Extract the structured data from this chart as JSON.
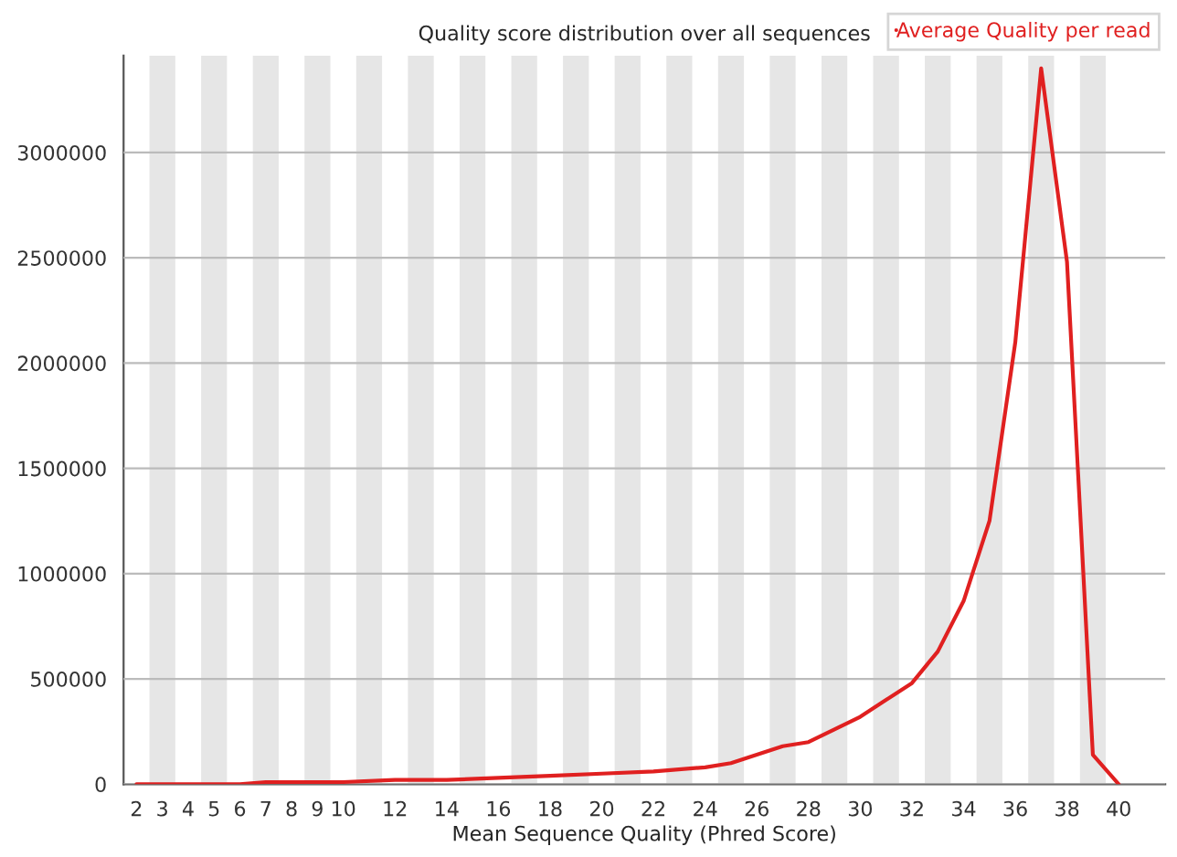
{
  "chart_data": {
    "type": "line",
    "title": "Quality score distribution over all sequences",
    "xlabel": "Mean Sequence Quality (Phred Score)",
    "x": [
      2,
      3,
      4,
      5,
      6,
      7,
      8,
      9,
      10,
      12,
      14,
      16,
      18,
      20,
      22,
      24,
      25,
      26,
      27,
      28,
      29,
      30,
      31,
      32,
      33,
      34,
      35,
      36,
      37,
      38,
      39,
      40
    ],
    "series": [
      {
        "name": "Average Quality per read",
        "color": "#e02020",
        "values": [
          0,
          0,
          0,
          0,
          0,
          10000,
          10000,
          10000,
          10000,
          20000,
          20000,
          30000,
          40000,
          50000,
          60000,
          80000,
          100000,
          140000,
          180000,
          200000,
          260000,
          320000,
          400000,
          480000,
          630000,
          870000,
          1250000,
          2100000,
          3400000,
          2480000,
          140000,
          0
        ]
      }
    ],
    "xlim": [
      1.5,
      41.8
    ],
    "ylim": [
      0,
      3460000
    ],
    "xticks": [
      2,
      3,
      4,
      5,
      6,
      7,
      8,
      9,
      10,
      12,
      14,
      16,
      18,
      20,
      22,
      24,
      26,
      28,
      30,
      32,
      34,
      36,
      38,
      40
    ],
    "yticks": [
      0,
      500000,
      1000000,
      1500000,
      2000000,
      2500000,
      3000000
    ],
    "bands": [
      {
        "axis": "x",
        "from": 2.5,
        "to": 3.5,
        "color": "#e6e6e6"
      },
      {
        "axis": "x",
        "from": 4.5,
        "to": 5.5,
        "color": "#e6e6e6"
      },
      {
        "axis": "x",
        "from": 6.5,
        "to": 7.5,
        "color": "#e6e6e6"
      },
      {
        "axis": "x",
        "from": 8.5,
        "to": 9.5,
        "color": "#e6e6e6"
      },
      {
        "axis": "x",
        "from": 10.5,
        "to": 11.5,
        "color": "#e6e6e6"
      },
      {
        "axis": "x",
        "from": 12.5,
        "to": 13.5,
        "color": "#e6e6e6"
      },
      {
        "axis": "x",
        "from": 14.5,
        "to": 15.5,
        "color": "#e6e6e6"
      },
      {
        "axis": "x",
        "from": 16.5,
        "to": 17.5,
        "color": "#e6e6e6"
      },
      {
        "axis": "x",
        "from": 18.5,
        "to": 19.5,
        "color": "#e6e6e6"
      },
      {
        "axis": "x",
        "from": 20.5,
        "to": 21.5,
        "color": "#e6e6e6"
      },
      {
        "axis": "x",
        "from": 22.5,
        "to": 23.5,
        "color": "#e6e6e6"
      },
      {
        "axis": "x",
        "from": 24.5,
        "to": 25.5,
        "color": "#e6e6e6"
      },
      {
        "axis": "x",
        "from": 26.5,
        "to": 27.5,
        "color": "#e6e6e6"
      },
      {
        "axis": "x",
        "from": 28.5,
        "to": 29.5,
        "color": "#e6e6e6"
      },
      {
        "axis": "x",
        "from": 30.5,
        "to": 31.5,
        "color": "#e6e6e6"
      },
      {
        "axis": "x",
        "from": 32.5,
        "to": 33.5,
        "color": "#e6e6e6"
      },
      {
        "axis": "x",
        "from": 34.5,
        "to": 35.5,
        "color": "#e6e6e6"
      },
      {
        "axis": "x",
        "from": 36.5,
        "to": 37.5,
        "color": "#e6e6e6"
      },
      {
        "axis": "x",
        "from": 38.5,
        "to": 39.5,
        "color": "#e6e6e6"
      }
    ],
    "grid": "y",
    "legend": "top right",
    "marker": "none",
    "line_style": "solid"
  }
}
